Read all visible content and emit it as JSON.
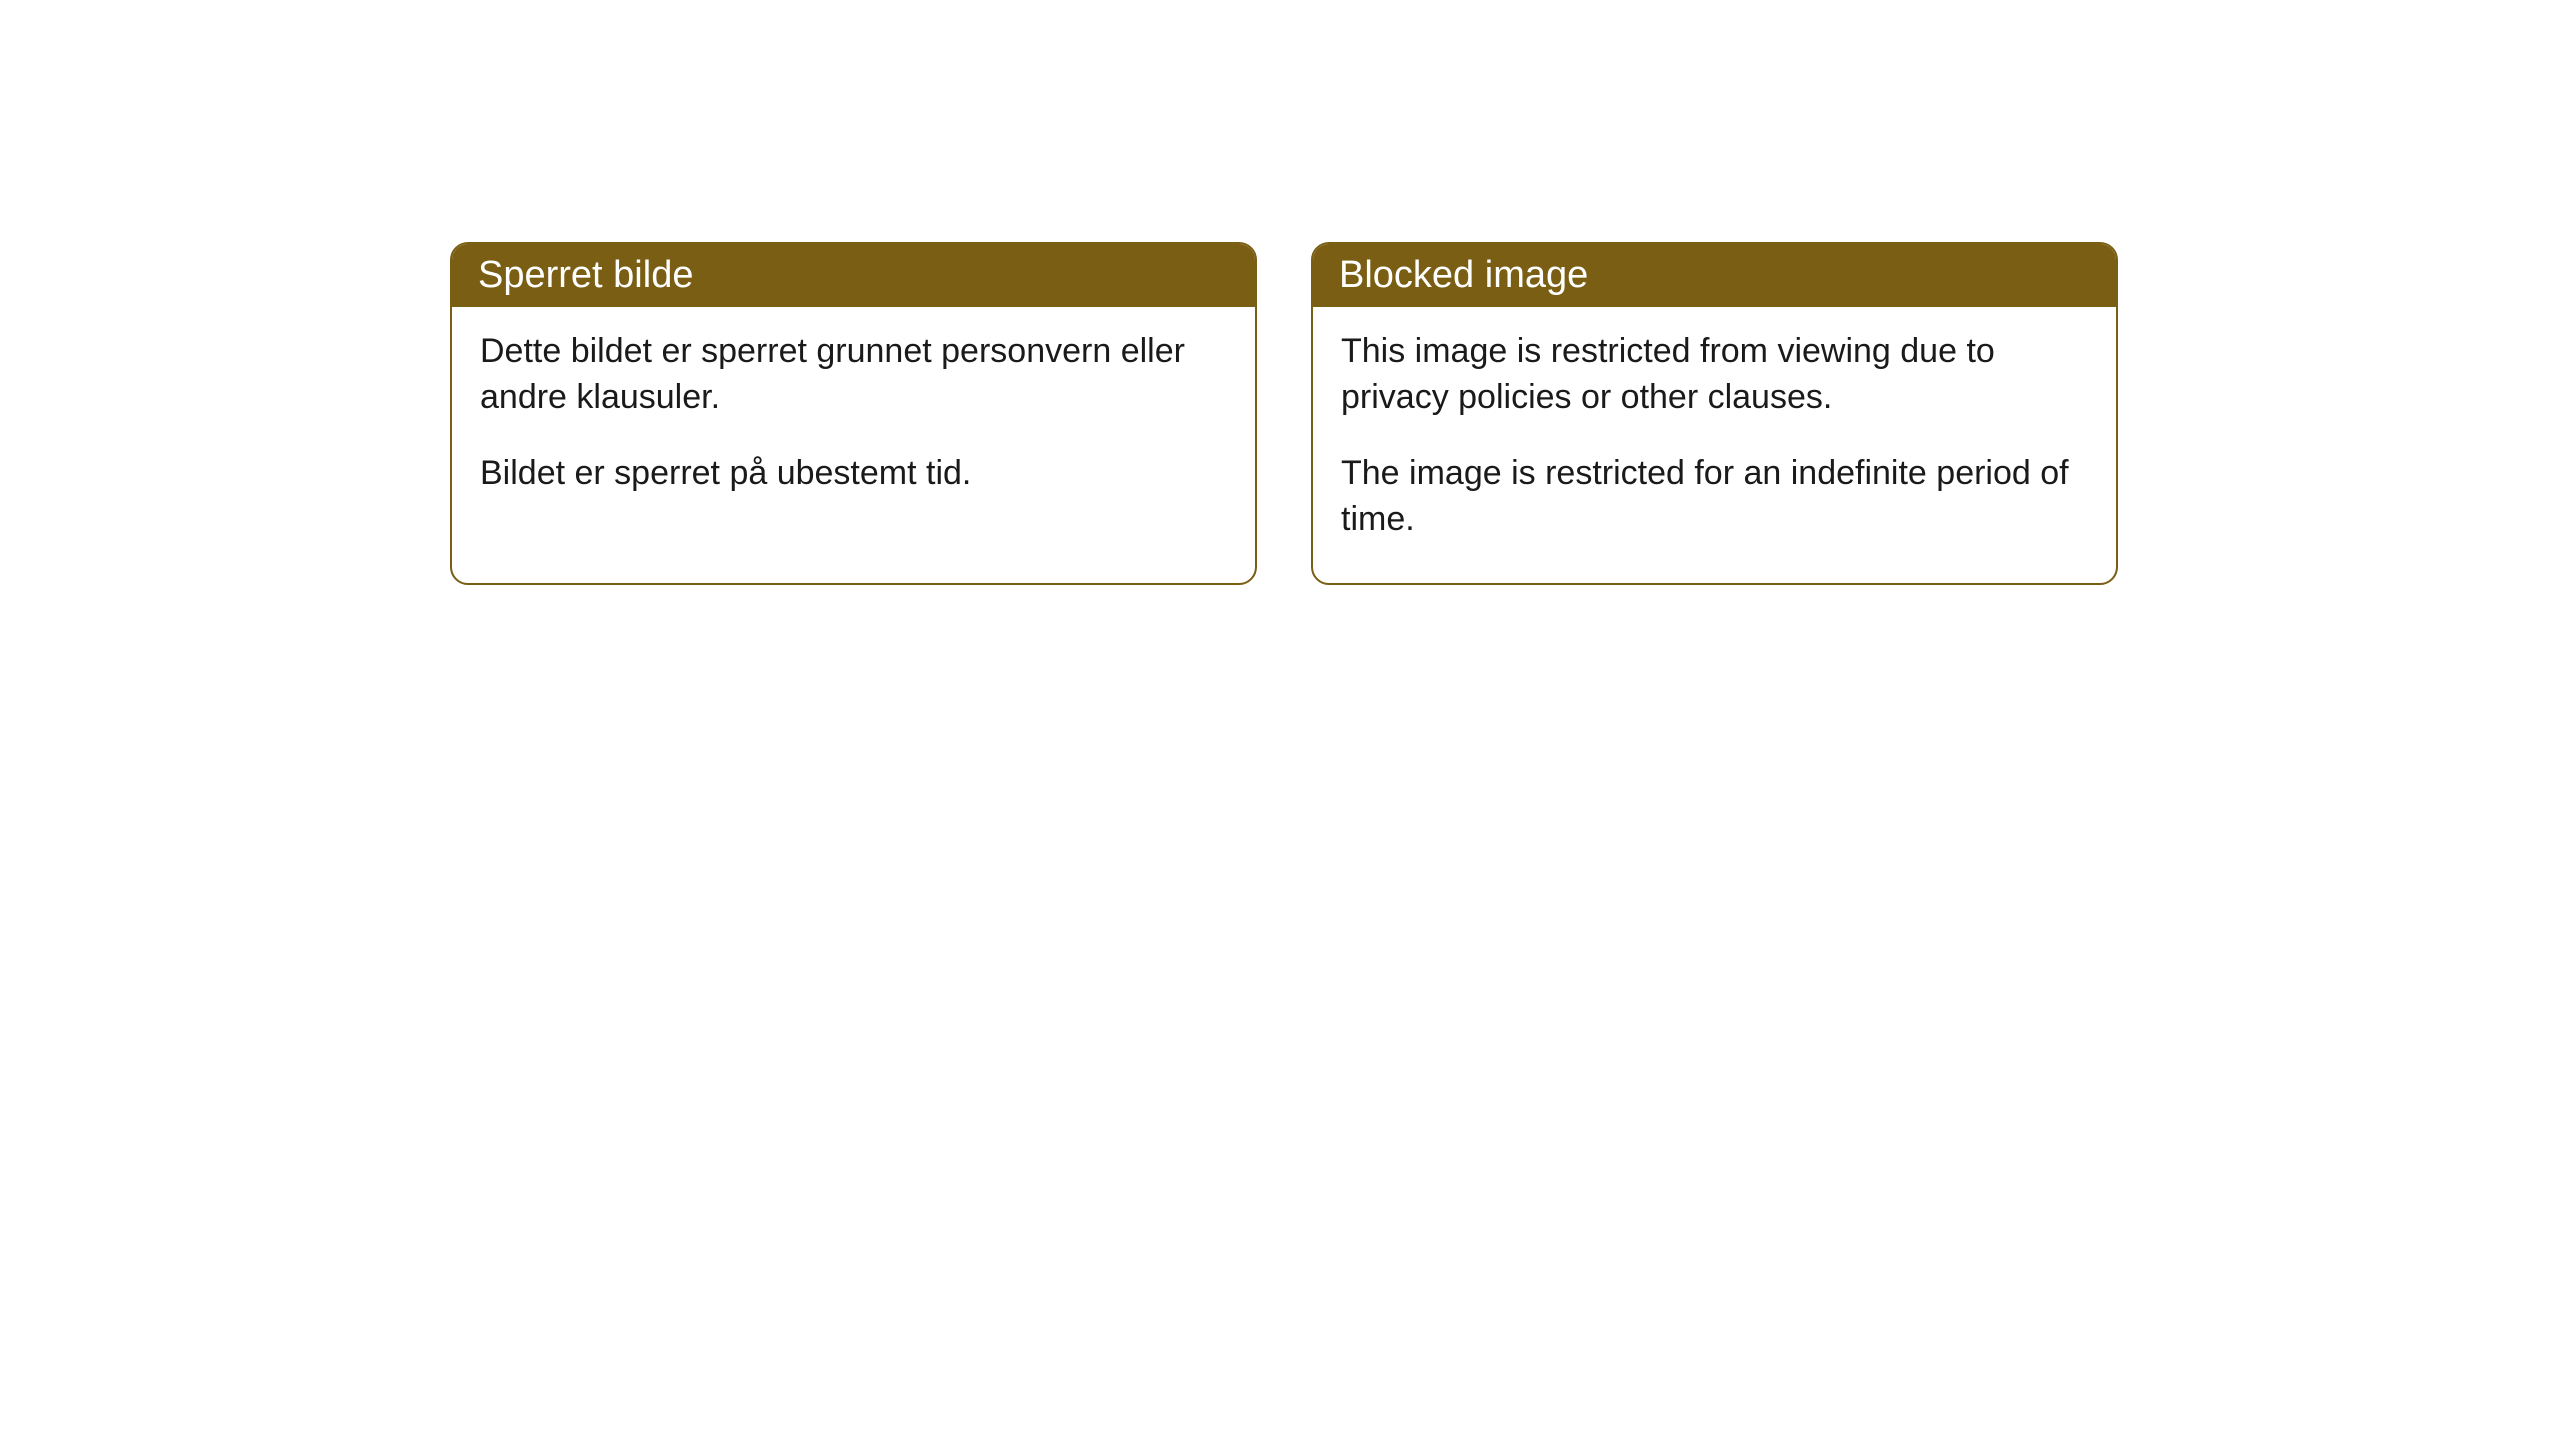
{
  "cards": [
    {
      "header": "Sperret bilde",
      "paragraph1": "Dette bildet er sperret grunnet personvern eller andre klausuler.",
      "paragraph2": "Bildet er sperret på ubestemt tid."
    },
    {
      "header": "Blocked image",
      "paragraph1": "This image is restricted from viewing due to privacy policies or other clauses.",
      "paragraph2": "The image is restricted for an indefinite period of time."
    }
  ],
  "style": {
    "header_background": "#7a5e13",
    "header_text_color": "#ffffff",
    "border_color": "#7a5e13",
    "body_background": "#ffffff",
    "body_text_color": "#1a1a1a",
    "border_radius": 18,
    "header_fontsize": 38,
    "body_fontsize": 34
  }
}
